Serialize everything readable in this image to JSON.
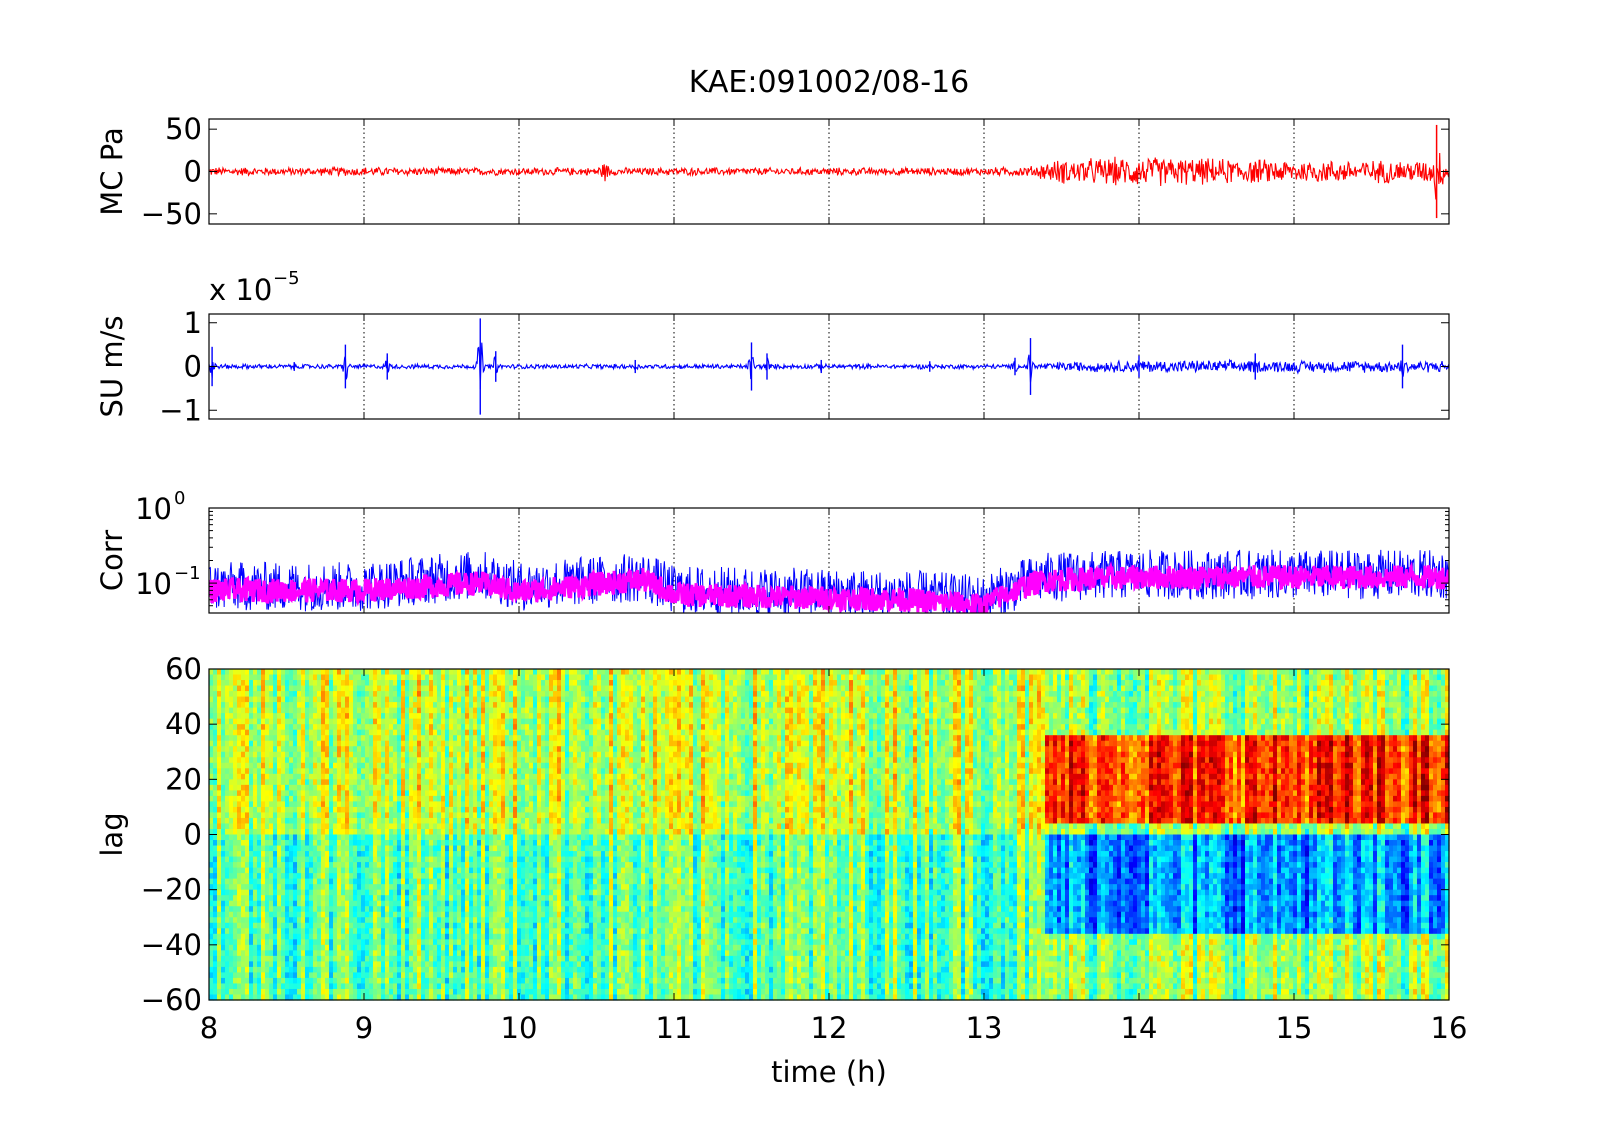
{
  "figure": {
    "title": "KAE:091002/08-16"
  },
  "chart_data": [
    {
      "id": "mc",
      "type": "line",
      "ylabel": "MC Pa",
      "xlim": [
        8,
        16
      ],
      "ylim": [
        -62,
        62
      ],
      "yticks": [
        -50,
        0,
        50
      ],
      "ytick_labels": [
        "−50",
        "0",
        "50"
      ],
      "xgrid": "dotted",
      "series": [
        {
          "color": "#ff0000",
          "envelope": {
            "x": [
              8.0,
              8.5,
              9.0,
              9.5,
              10.0,
              10.5,
              10.55,
              10.6,
              11.0,
              11.5,
              12.0,
              12.5,
              13.0,
              13.3,
              13.4,
              13.5,
              14.0,
              14.5,
              15.0,
              15.5,
              15.9,
              15.92,
              15.95,
              16.0
            ],
            "amp": [
              6,
              5,
              6,
              5,
              5,
              5,
              14,
              5,
              5,
              5,
              5,
              5,
              5,
              7,
              12,
              16,
              20,
              17,
              15,
              15,
              15,
              55,
              18,
              15
            ]
          }
        }
      ]
    },
    {
      "id": "su",
      "type": "line",
      "ylabel": "SU m/s",
      "exponent": "x 10",
      "exponent_power": "−5",
      "xlim": [
        8,
        16
      ],
      "ylim": [
        -1.2,
        1.2
      ],
      "yticks": [
        -1,
        0,
        1
      ],
      "ytick_labels": [
        "−1",
        "0",
        "1"
      ],
      "xgrid": "dotted",
      "series": [
        {
          "color": "#0000ff",
          "baseline_amp": 0.06,
          "background": {
            "x": [
              8.0,
              13.3,
              13.5,
              14.0,
              16.0
            ],
            "amp": [
              0.06,
              0.06,
              0.12,
              0.16,
              0.15
            ]
          },
          "events": [
            {
              "x": 8.02,
              "amp": 0.45
            },
            {
              "x": 8.55,
              "amp": 0.1
            },
            {
              "x": 8.88,
              "amp": 0.5
            },
            {
              "x": 9.15,
              "amp": 0.3
            },
            {
              "x": 9.75,
              "amp": 1.1
            },
            {
              "x": 9.85,
              "amp": 0.35
            },
            {
              "x": 10.75,
              "amp": 0.15
            },
            {
              "x": 11.5,
              "amp": 0.55
            },
            {
              "x": 11.6,
              "amp": 0.3
            },
            {
              "x": 11.95,
              "amp": 0.15
            },
            {
              "x": 12.65,
              "amp": 0.12
            },
            {
              "x": 13.2,
              "amp": 0.2
            },
            {
              "x": 13.3,
              "amp": 0.65
            },
            {
              "x": 14.0,
              "amp": 0.25
            },
            {
              "x": 14.75,
              "amp": 0.3
            },
            {
              "x": 15.7,
              "amp": 0.5
            }
          ]
        }
      ]
    },
    {
      "id": "corr",
      "type": "line",
      "ylabel": "Corr",
      "yscale": "log",
      "xlim": [
        8,
        16
      ],
      "ylim": [
        0.04,
        1.0
      ],
      "yticks": [
        1.0,
        0.1
      ],
      "ytick_labels_base": [
        "10",
        "10"
      ],
      "ytick_labels_power": [
        "0",
        "−1"
      ],
      "xgrid": "dotted",
      "series": [
        {
          "color": "#0000ff",
          "role": "raw",
          "level": {
            "x": [
              8.0,
              9.0,
              9.75,
              10.0,
              10.8,
              11.0,
              12.5,
              13.0,
              13.4,
              14.0,
              15.0,
              16.0
            ],
            "center": [
              0.09,
              0.09,
              0.13,
              0.09,
              0.12,
              0.08,
              0.07,
              0.06,
              0.12,
              0.13,
              0.13,
              0.13
            ]
          }
        },
        {
          "color": "#ff00ff",
          "role": "smoothed",
          "level": {
            "x": [
              8.0,
              9.0,
              9.75,
              10.0,
              10.8,
              11.0,
              12.5,
              13.0,
              13.4,
              14.0,
              15.0,
              16.0
            ],
            "center": [
              0.08,
              0.08,
              0.1,
              0.075,
              0.11,
              0.07,
              0.06,
              0.05,
              0.11,
              0.12,
              0.12,
              0.12
            ]
          }
        }
      ]
    },
    {
      "id": "lag",
      "type": "heatmap",
      "ylabel": "lag",
      "xlabel": "time (h)",
      "xlim": [
        8,
        16
      ],
      "ylim": [
        -60,
        60
      ],
      "yticks": [
        -60,
        -40,
        -20,
        0,
        20,
        40,
        60
      ],
      "ytick_labels": [
        "−60",
        "−40",
        "−20",
        "0",
        "20",
        "40",
        "60"
      ],
      "xticks": [
        8,
        9,
        10,
        11,
        12,
        13,
        14,
        15,
        16
      ],
      "xtick_labels": [
        "8",
        "9",
        "10",
        "11",
        "12",
        "13",
        "14",
        "15",
        "16"
      ],
      "colormap": "jet",
      "clim": [
        -1,
        1
      ],
      "pattern": {
        "onset_time": 13.4,
        "positive_lag_band": [
          5,
          35
        ],
        "negative_lag_band": [
          -35,
          0
        ],
        "before_onset_level": 0.15,
        "after_onset_positive": 0.65,
        "after_onset_negative": -0.45
      }
    }
  ]
}
